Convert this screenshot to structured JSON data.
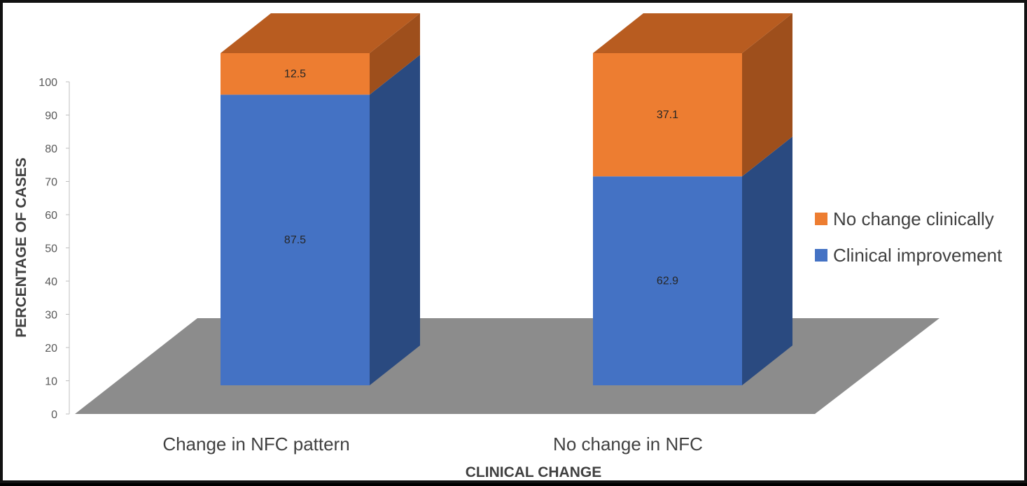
{
  "chart_data": {
    "type": "bar",
    "stacked": true,
    "three_d": true,
    "categories": [
      "Change in NFC pattern",
      "No change in NFC"
    ],
    "series": [
      {
        "name": "Clinical improvement",
        "values": [
          87.5,
          62.9
        ],
        "color": "#4472C4",
        "side_color": "#2A4A80"
      },
      {
        "name": "No change clinically",
        "values": [
          12.5,
          37.1
        ],
        "color": "#ED7D31",
        "side_color": "#9E4F1C",
        "top_color": "#B85C20"
      }
    ],
    "xlabel": "CLINICAL CHANGE",
    "ylabel": "PERCENTAGE OF CASES",
    "ylim": [
      0,
      100
    ],
    "yticks": [
      0,
      10,
      20,
      30,
      40,
      50,
      60,
      70,
      80,
      90,
      100
    ],
    "floor_color": "#8C8C8C",
    "legend_position": "right",
    "grid": false
  }
}
